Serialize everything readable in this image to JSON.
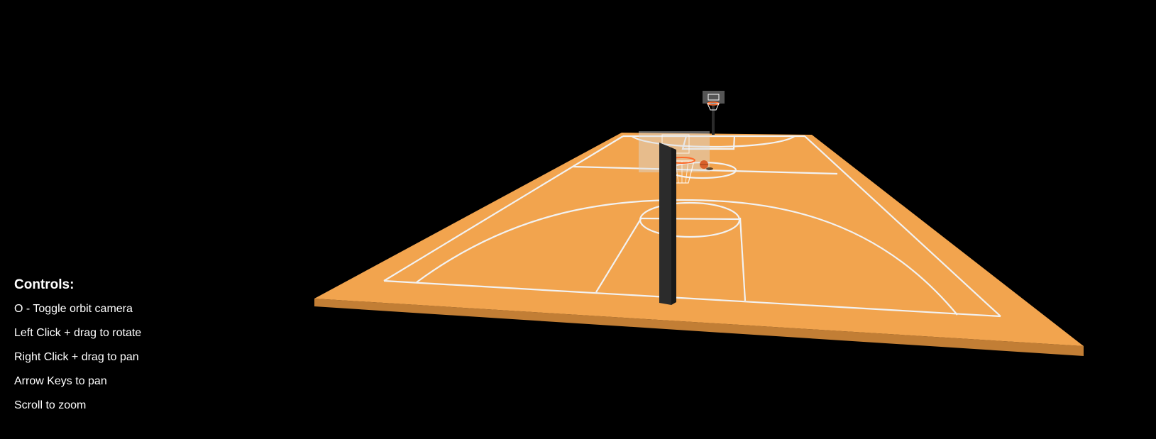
{
  "controls": {
    "title": "Controls:",
    "items": [
      "O - Toggle orbit camera",
      "Left Click + drag to rotate",
      "Right Click + drag to pan",
      "Arrow Keys to pan",
      "Scroll to zoom"
    ]
  },
  "scene": {
    "background_color": "#000000",
    "court_color": "#f2a44e",
    "court_edge_color": "#c27e35",
    "line_color": "#f2f2f2",
    "pole_color": "#2b2b2b",
    "backboard_color": "#d9d9d9",
    "rim_color": "#ff6a2a",
    "ball_color": "#d9602a"
  }
}
